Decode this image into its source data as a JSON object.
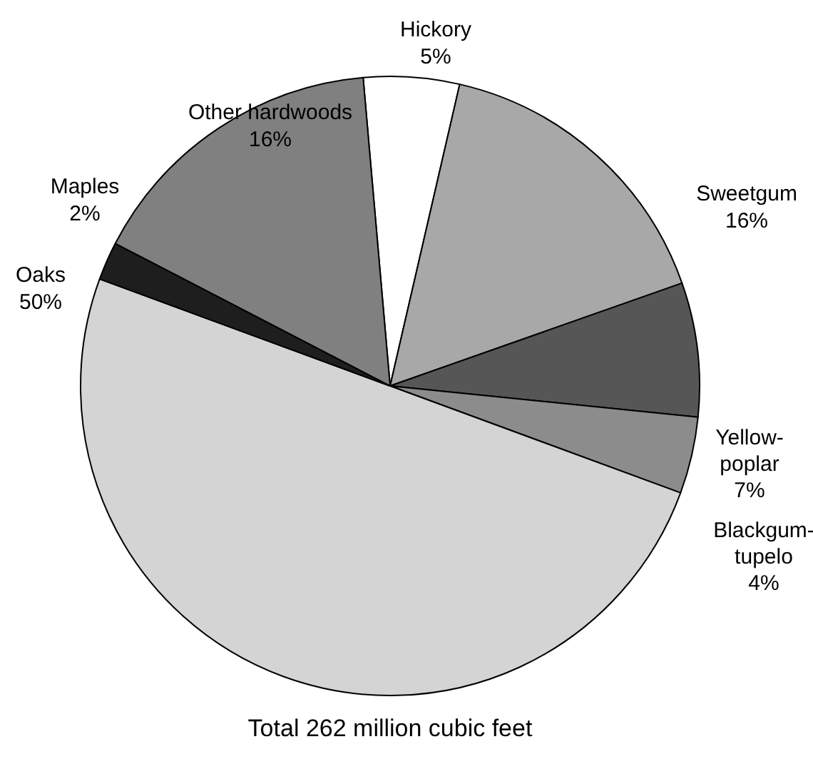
{
  "chart_data": {
    "type": "pie",
    "categories": [
      "Hickory",
      "Sweetgum",
      "Yellow-poplar",
      "Blackgum-tupelo",
      "Oaks",
      "Maples",
      "Other hardwoods"
    ],
    "values": [
      5,
      16,
      7,
      4,
      50,
      2,
      16
    ],
    "colors": [
      "#ffffff",
      "#a8a8a8",
      "#565656",
      "#8c8c8c",
      "#d4d4d4",
      "#1e1e1e",
      "#808080"
    ],
    "value_labels": [
      "5%",
      "16%",
      "7%",
      "4%",
      "50%",
      "2%",
      "16%"
    ],
    "annotations": [
      "Total 262 million cubic feet"
    ]
  }
}
